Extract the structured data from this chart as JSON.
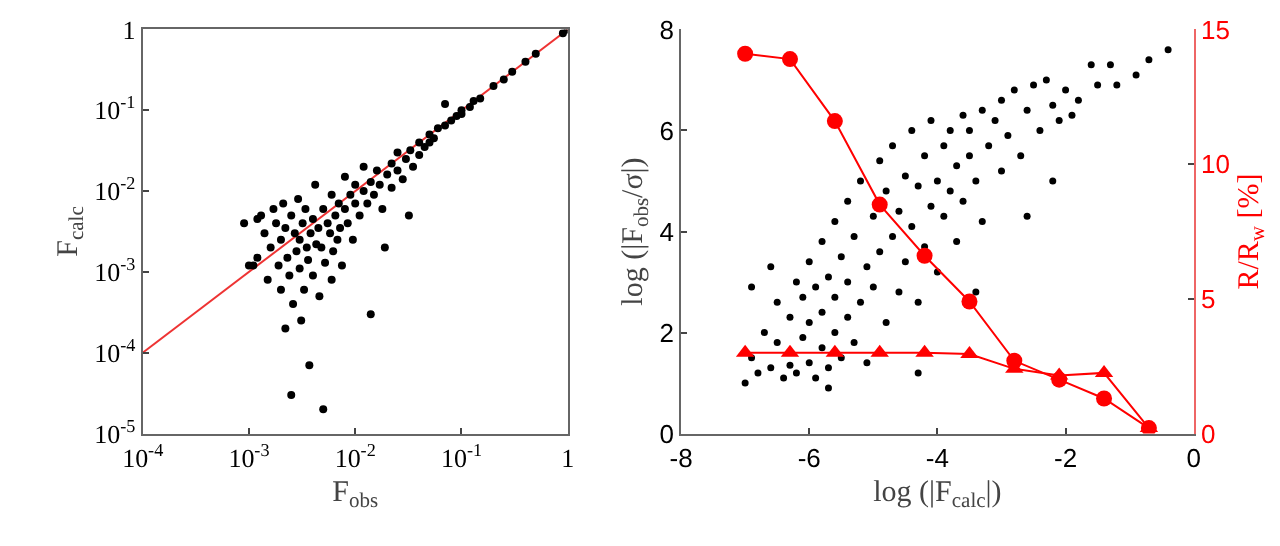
{
  "chart_data": [
    {
      "type": "scatter",
      "xlabel": "F$_{obs}$",
      "ylabel": "F$_{calc}$",
      "log": "xy",
      "xlim": [
        0.0001,
        1
      ],
      "ylim": [
        1e-05,
        1
      ],
      "xticks": [
        {
          "value": 0.0001,
          "label": "10$^{-4}$"
        },
        {
          "value": 0.001,
          "label": "10$^{-3}$"
        },
        {
          "value": 0.01,
          "label": "10$^{-2}$"
        },
        {
          "value": 0.1,
          "label": "10$^{-1}$"
        },
        1
      ],
      "yticks": [
        {
          "value": 1e-05,
          "label": "10$^{-5}$"
        },
        {
          "value": 0.0001,
          "label": "10$^{-4}$"
        },
        {
          "value": 0.001,
          "label": "10$^{-3}$"
        },
        {
          "value": 0.01,
          "label": "10$^{-2}$"
        },
        {
          "value": 0.1,
          "label": "10$^{-1}$"
        },
        1
      ],
      "series": [
        {
          "type": "line",
          "color": "#ee3333",
          "marker": "none",
          "x": [
            0.0001,
            1
          ],
          "values": [
            0.0001,
            1
          ]
        },
        {
          "color": "#000000",
          "marker": "circle",
          "x": [
            0.0009,
            0.0011,
            0.0012,
            0.0013,
            0.0014,
            0.0015,
            0.0016,
            0.0017,
            0.0018,
            0.0019,
            0.002,
            0.002,
            0.0021,
            0.0022,
            0.0022,
            0.0023,
            0.0024,
            0.0025,
            0.0025,
            0.0026,
            0.0027,
            0.0028,
            0.0029,
            0.003,
            0.003,
            0.0031,
            0.0032,
            0.0033,
            0.0034,
            0.0035,
            0.0036,
            0.0037,
            0.0038,
            0.004,
            0.004,
            0.0042,
            0.0043,
            0.0045,
            0.0046,
            0.0048,
            0.005,
            0.005,
            0.0052,
            0.0055,
            0.0058,
            0.006,
            0.006,
            0.0062,
            0.0065,
            0.0068,
            0.007,
            0.0072,
            0.0075,
            0.008,
            0.008,
            0.0085,
            0.009,
            0.0095,
            0.01,
            0.01,
            0.011,
            0.012,
            0.012,
            0.013,
            0.014,
            0.014,
            0.015,
            0.016,
            0.017,
            0.018,
            0.019,
            0.02,
            0.022,
            0.022,
            0.025,
            0.025,
            0.028,
            0.03,
            0.032,
            0.033,
            0.035,
            0.04,
            0.04,
            0.045,
            0.05,
            0.05,
            0.055,
            0.06,
            0.07,
            0.07,
            0.08,
            0.09,
            0.1,
            0.1,
            0.12,
            0.13,
            0.15,
            0.2,
            0.25,
            0.3,
            0.4,
            0.5,
            0.9,
            1,
            0.001,
            0.0012
          ],
          "values": [
            0.004,
            0.0012,
            0.0045,
            0.005,
            0.003,
            0.0008,
            0.002,
            0.006,
            0.004,
            0.0012,
            0.0025,
            0.0006,
            0.007,
            0.0002,
            0.0035,
            0.0015,
            0.0009,
            0.005,
            3e-05,
            0.0004,
            0.003,
            0.0018,
            0.008,
            0.0025,
            0.0011,
            0.00025,
            0.004,
            0.0006,
            0.006,
            0.002,
            0.0014,
            7e-05,
            0.003,
            0.0045,
            0.0009,
            0.012,
            0.0022,
            0.0035,
            0.0005,
            0.002,
            0.006,
            2e-05,
            0.0013,
            0.004,
            0.003,
            0.0008,
            0.009,
            0.0018,
            0.005,
            0.0025,
            0.007,
            0.0035,
            0.0012,
            0.006,
            0.015,
            0.004,
            0.009,
            0.0025,
            0.007,
            0.012,
            0.005,
            0.01,
            0.02,
            0.007,
            0.0003,
            0.013,
            0.009,
            0.018,
            0.012,
            0.006,
            0.002,
            0.016,
            0.022,
            0.011,
            0.018,
            0.03,
            0.014,
            0.025,
            0.005,
            0.032,
            0.02,
            0.04,
            0.028,
            0.035,
            0.05,
            0.04,
            0.045,
            0.06,
            0.065,
            0.12,
            0.075,
            0.085,
            0.1,
            0.09,
            0.11,
            0.13,
            0.14,
            0.2,
            0.24,
            0.3,
            0.4,
            0.5,
            0.9,
            1,
            0.0012,
            0.0015
          ]
        }
      ]
    },
    {
      "type": "scatter",
      "xlabel": "log (|F$_{calc}$|)",
      "ylabel": "log (|F$_{obs}$/σ|)",
      "y2label": "R/R$_{w}$ [%]",
      "xlim": [
        -8,
        0
      ],
      "ylim": [
        0,
        8
      ],
      "y2lim": [
        0,
        15
      ],
      "xticks": [
        -8,
        -6,
        -4,
        -2,
        0
      ],
      "yticks": [
        0,
        2,
        4,
        6,
        8
      ],
      "y2ticks": [
        0,
        5,
        10,
        15
      ],
      "series": [
        {
          "color": "#000000",
          "marker": "circle",
          "x": [
            -6.9,
            -6.8,
            -6.7,
            -6.6,
            -6.5,
            -6.5,
            -6.4,
            -6.3,
            -6.3,
            -6.2,
            -6.2,
            -6.1,
            -6.1,
            -6.0,
            -6.0,
            -6.0,
            -5.9,
            -5.9,
            -5.8,
            -5.8,
            -5.8,
            -5.7,
            -5.7,
            -5.6,
            -5.6,
            -5.6,
            -5.5,
            -5.5,
            -5.4,
            -5.4,
            -5.4,
            -5.3,
            -5.3,
            -5.2,
            -5.2,
            -5.1,
            -5.1,
            -5.0,
            -5.0,
            -4.9,
            -4.9,
            -4.8,
            -4.8,
            -4.7,
            -4.7,
            -4.6,
            -4.6,
            -4.5,
            -4.5,
            -4.4,
            -4.4,
            -4.3,
            -4.3,
            -4.2,
            -4.2,
            -4.1,
            -4.1,
            -4.0,
            -4.0,
            -3.9,
            -3.9,
            -3.8,
            -3.8,
            -3.7,
            -3.7,
            -3.6,
            -3.6,
            -3.5,
            -3.5,
            -3.4,
            -3.3,
            -3.3,
            -3.2,
            -3.1,
            -3.0,
            -3.0,
            -2.9,
            -2.8,
            -2.7,
            -2.6,
            -2.5,
            -2.4,
            -2.3,
            -2.2,
            -2.1,
            -2.0,
            -1.9,
            -1.8,
            -1.6,
            -1.5,
            -1.3,
            -1.2,
            -0.9,
            -0.7,
            -0.4,
            -6.9,
            -7.0,
            -6.6,
            -5.7,
            -4.3,
            -3.4,
            -2.6,
            -2.2
          ],
          "values": [
            1.5,
            1.2,
            2.0,
            1.3,
            1.8,
            2.6,
            1.1,
            1.35,
            2.3,
            3.0,
            1.2,
            1.9,
            2.7,
            1.4,
            3.4,
            2.2,
            1.1,
            2.9,
            1.7,
            3.8,
            2.4,
            1.3,
            3.1,
            2.0,
            4.2,
            2.7,
            1.5,
            3.5,
            2.3,
            4.6,
            3.0,
            1.8,
            3.9,
            2.6,
            5.0,
            3.3,
            1.4,
            4.3,
            2.9,
            5.4,
            3.6,
            2.2,
            4.8,
            3.9,
            5.7,
            2.8,
            4.4,
            5.1,
            3.4,
            6.0,
            4.1,
            2.6,
            4.9,
            5.5,
            3.7,
            4.5,
            6.2,
            5.0,
            3.2,
            5.7,
            4.3,
            6.0,
            4.8,
            5.3,
            3.8,
            6.3,
            4.6,
            5.5,
            6.0,
            5.0,
            6.4,
            4.2,
            5.7,
            6.2,
            5.2,
            6.6,
            5.9,
            6.8,
            5.5,
            6.4,
            6.9,
            6.0,
            7.0,
            6.5,
            6.2,
            6.8,
            6.3,
            6.6,
            7.3,
            6.9,
            7.3,
            6.9,
            7.1,
            7.4,
            7.6,
            2.9,
            1.0,
            3.3,
            0.9,
            1.2,
            2.8,
            4.3,
            5.0
          ]
        },
        {
          "type": "line",
          "color": "#ff0000",
          "marker": "circle",
          "axis": "y2",
          "x": [
            -7.0,
            -6.3,
            -5.6,
            -4.9,
            -4.2,
            -3.5,
            -2.8,
            -2.1,
            -1.4,
            -0.7
          ],
          "values": [
            14.1,
            13.9,
            11.6,
            8.5,
            6.6,
            4.9,
            2.7,
            2.0,
            1.3,
            0.2
          ]
        },
        {
          "type": "line",
          "color": "#ff0000",
          "marker": "triangle",
          "axis": "y2",
          "x": [
            -7.0,
            -6.3,
            -5.6,
            -4.9,
            -4.2,
            -3.5,
            -2.8,
            -2.1,
            -1.4,
            -0.7
          ],
          "values": [
            3.0,
            3.0,
            3.0,
            3.0,
            3.0,
            2.95,
            2.4,
            2.15,
            2.25,
            0.2
          ]
        }
      ]
    }
  ]
}
